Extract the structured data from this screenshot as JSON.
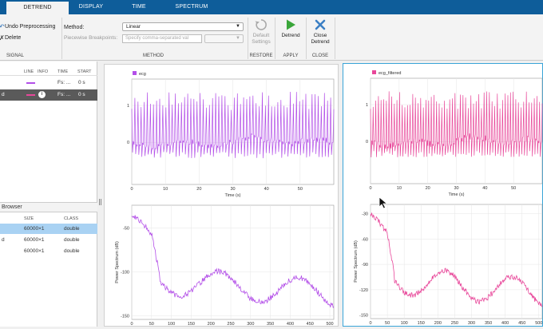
{
  "tabs": [
    {
      "label": "DETREND",
      "active": true
    },
    {
      "label": "DISPLAY",
      "active": false
    },
    {
      "label": "TIME",
      "active": false
    },
    {
      "label": "SPECTRUM",
      "active": false
    }
  ],
  "ribbon": {
    "undo_label": "Undo Preprocessing",
    "delete_label": "Delete",
    "signal_section": "SIGNAL",
    "method_label": "Method:",
    "method_value": "Linear",
    "breakpoints_label": "Piecewise Breakpoints:",
    "breakpoints_placeholder": "Specify comma-separated val",
    "method_section": "METHOD",
    "default_line1": "Default",
    "default_line2": "Settings",
    "restore_section": "RESTORE",
    "detrend_label": "Detrend",
    "apply_section": "APPLY",
    "close_line1": "Close",
    "close_line2": "Detrend",
    "close_section": "CLOSE"
  },
  "signal_table": {
    "headers": [
      "LINE",
      "INFO",
      "TIME",
      "START"
    ],
    "rows": [
      {
        "name": "",
        "line_color": "#b34fe8",
        "info": "",
        "time": "Fs: ...",
        "start": "0 s",
        "selected": false
      },
      {
        "name": "d",
        "line_color": "#e8479a",
        "info": "i",
        "time": "Fs: ...",
        "start": "0 s",
        "selected": true
      }
    ]
  },
  "browser": {
    "title": "Browser",
    "headers": [
      "SIZE",
      "CLASS"
    ],
    "rows": [
      {
        "name": "",
        "size": "60000×1",
        "class": "double",
        "selected": true
      },
      {
        "name": "d",
        "size": "60000×1",
        "class": "double",
        "selected": false
      },
      {
        "name": "",
        "size": "60000×1",
        "class": "double",
        "selected": false
      }
    ]
  },
  "plots": {
    "left": {
      "legend": "ecg",
      "color": "#b34fe8",
      "time_xlabel": "Time (s)",
      "time_xticks": [
        "0",
        "10",
        "20",
        "30",
        "40",
        "50"
      ],
      "time_yticks": [
        "1",
        "0"
      ],
      "spec_ylabel": "Power Spectrum (dB)",
      "spec_xticks": [
        "0",
        "50",
        "100",
        "150",
        "200",
        "250",
        "300",
        "350",
        "400",
        "450",
        "500"
      ],
      "spec_yticks": [
        "-50",
        "-100",
        "-150"
      ]
    },
    "right": {
      "legend": "ecg_filtered",
      "color": "#e8479a",
      "time_xlabel": "Time (s)",
      "time_xticks": [
        "0",
        "10",
        "20",
        "30",
        "40",
        "50"
      ],
      "time_yticks": [
        "1",
        "0"
      ],
      "spec_ylabel": "Power Spectrum (dB)",
      "spec_xticks": [
        "0",
        "50",
        "100",
        "150",
        "200",
        "250",
        "300",
        "350",
        "400",
        "450",
        "500"
      ],
      "spec_yticks": [
        "-30",
        "-60",
        "-90",
        "-120",
        "-150"
      ]
    }
  }
}
